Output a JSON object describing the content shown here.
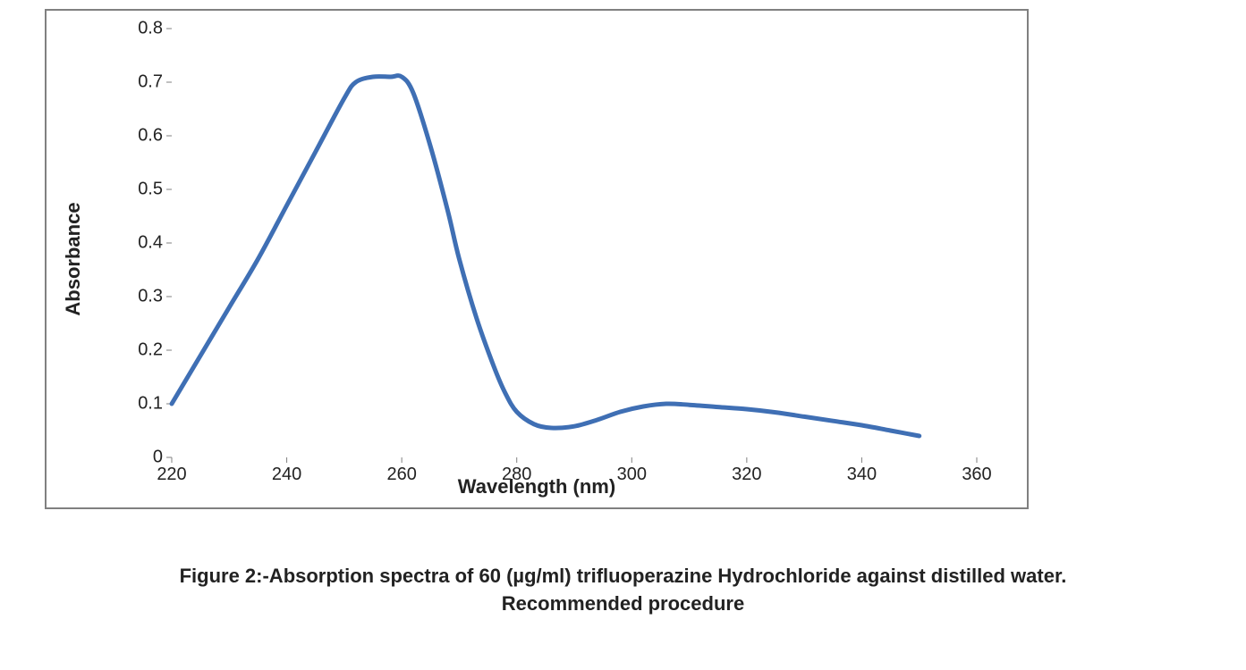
{
  "chart": {
    "type": "line",
    "x_label": "Wavelength (nm)",
    "y_label": "Absorbance",
    "label_fontsize": 22,
    "tick_fontsize": 20,
    "line_color": "#3f6fb4",
    "line_width": 5,
    "background_color": "#ffffff",
    "border_color": "#808080",
    "xlim": [
      220,
      360
    ],
    "ylim": [
      0,
      0.8
    ],
    "x_ticks": [
      220,
      240,
      260,
      280,
      300,
      320,
      340,
      360
    ],
    "y_ticks": [
      0,
      0.1,
      0.2,
      0.3,
      0.4,
      0.5,
      0.6,
      0.7,
      0.8
    ],
    "data": [
      {
        "x": 220,
        "y": 0.1
      },
      {
        "x": 225,
        "y": 0.19
      },
      {
        "x": 230,
        "y": 0.28
      },
      {
        "x": 235,
        "y": 0.37
      },
      {
        "x": 240,
        "y": 0.47
      },
      {
        "x": 245,
        "y": 0.57
      },
      {
        "x": 250,
        "y": 0.67
      },
      {
        "x": 252,
        "y": 0.7
      },
      {
        "x": 255,
        "y": 0.71
      },
      {
        "x": 258,
        "y": 0.71
      },
      {
        "x": 260,
        "y": 0.71
      },
      {
        "x": 262,
        "y": 0.68
      },
      {
        "x": 265,
        "y": 0.58
      },
      {
        "x": 268,
        "y": 0.46
      },
      {
        "x": 270,
        "y": 0.37
      },
      {
        "x": 273,
        "y": 0.26
      },
      {
        "x": 276,
        "y": 0.17
      },
      {
        "x": 278,
        "y": 0.12
      },
      {
        "x": 280,
        "y": 0.085
      },
      {
        "x": 283,
        "y": 0.062
      },
      {
        "x": 286,
        "y": 0.055
      },
      {
        "x": 290,
        "y": 0.058
      },
      {
        "x": 294,
        "y": 0.07
      },
      {
        "x": 298,
        "y": 0.085
      },
      {
        "x": 302,
        "y": 0.095
      },
      {
        "x": 306,
        "y": 0.1
      },
      {
        "x": 310,
        "y": 0.098
      },
      {
        "x": 315,
        "y": 0.094
      },
      {
        "x": 320,
        "y": 0.09
      },
      {
        "x": 325,
        "y": 0.084
      },
      {
        "x": 330,
        "y": 0.076
      },
      {
        "x": 335,
        "y": 0.068
      },
      {
        "x": 340,
        "y": 0.06
      },
      {
        "x": 345,
        "y": 0.05
      },
      {
        "x": 350,
        "y": 0.04
      }
    ]
  },
  "caption": {
    "line1": "Figure 2:-Absorption spectra of 60 (µg/ml) trifluoperazine Hydrochloride against distilled water.",
    "line2": "Recommended procedure"
  }
}
